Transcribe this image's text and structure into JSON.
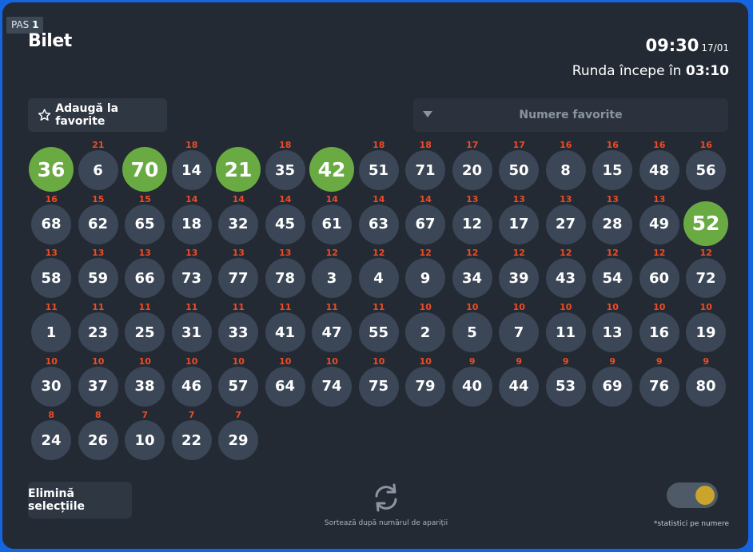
{
  "step": {
    "prefix": "PAS",
    "number": "1"
  },
  "title": "Bilet",
  "clock": {
    "time": "09:30",
    "date": "17/01"
  },
  "countdown": {
    "label": "Runda începe în",
    "value": "03:10"
  },
  "favorites_button": {
    "label": "Adaugă la favorite"
  },
  "favorites_select": {
    "placeholder": "Numere favorite"
  },
  "numbers": [
    {
      "n": "36",
      "count": "",
      "selected": true
    },
    {
      "n": "6",
      "count": "21",
      "selected": false
    },
    {
      "n": "70",
      "count": "",
      "selected": true
    },
    {
      "n": "14",
      "count": "18",
      "selected": false
    },
    {
      "n": "21",
      "count": "",
      "selected": true
    },
    {
      "n": "35",
      "count": "18",
      "selected": false
    },
    {
      "n": "42",
      "count": "",
      "selected": true
    },
    {
      "n": "51",
      "count": "18",
      "selected": false
    },
    {
      "n": "71",
      "count": "18",
      "selected": false
    },
    {
      "n": "20",
      "count": "17",
      "selected": false
    },
    {
      "n": "50",
      "count": "17",
      "selected": false
    },
    {
      "n": "8",
      "count": "16",
      "selected": false
    },
    {
      "n": "15",
      "count": "16",
      "selected": false
    },
    {
      "n": "48",
      "count": "16",
      "selected": false
    },
    {
      "n": "56",
      "count": "16",
      "selected": false
    },
    {
      "n": "68",
      "count": "16",
      "selected": false
    },
    {
      "n": "62",
      "count": "15",
      "selected": false
    },
    {
      "n": "65",
      "count": "15",
      "selected": false
    },
    {
      "n": "18",
      "count": "14",
      "selected": false
    },
    {
      "n": "32",
      "count": "14",
      "selected": false
    },
    {
      "n": "45",
      "count": "14",
      "selected": false
    },
    {
      "n": "61",
      "count": "14",
      "selected": false
    },
    {
      "n": "63",
      "count": "14",
      "selected": false
    },
    {
      "n": "67",
      "count": "14",
      "selected": false
    },
    {
      "n": "12",
      "count": "13",
      "selected": false
    },
    {
      "n": "17",
      "count": "13",
      "selected": false
    },
    {
      "n": "27",
      "count": "13",
      "selected": false
    },
    {
      "n": "28",
      "count": "13",
      "selected": false
    },
    {
      "n": "49",
      "count": "13",
      "selected": false
    },
    {
      "n": "52",
      "count": "",
      "selected": true
    },
    {
      "n": "58",
      "count": "13",
      "selected": false
    },
    {
      "n": "59",
      "count": "13",
      "selected": false
    },
    {
      "n": "66",
      "count": "13",
      "selected": false
    },
    {
      "n": "73",
      "count": "13",
      "selected": false
    },
    {
      "n": "77",
      "count": "13",
      "selected": false
    },
    {
      "n": "78",
      "count": "13",
      "selected": false
    },
    {
      "n": "3",
      "count": "12",
      "selected": false
    },
    {
      "n": "4",
      "count": "12",
      "selected": false
    },
    {
      "n": "9",
      "count": "12",
      "selected": false
    },
    {
      "n": "34",
      "count": "12",
      "selected": false
    },
    {
      "n": "39",
      "count": "12",
      "selected": false
    },
    {
      "n": "43",
      "count": "12",
      "selected": false
    },
    {
      "n": "54",
      "count": "12",
      "selected": false
    },
    {
      "n": "60",
      "count": "12",
      "selected": false
    },
    {
      "n": "72",
      "count": "12",
      "selected": false
    },
    {
      "n": "1",
      "count": "11",
      "selected": false
    },
    {
      "n": "23",
      "count": "11",
      "selected": false
    },
    {
      "n": "25",
      "count": "11",
      "selected": false
    },
    {
      "n": "31",
      "count": "11",
      "selected": false
    },
    {
      "n": "33",
      "count": "11",
      "selected": false
    },
    {
      "n": "41",
      "count": "11",
      "selected": false
    },
    {
      "n": "47",
      "count": "11",
      "selected": false
    },
    {
      "n": "55",
      "count": "11",
      "selected": false
    },
    {
      "n": "2",
      "count": "10",
      "selected": false
    },
    {
      "n": "5",
      "count": "10",
      "selected": false
    },
    {
      "n": "7",
      "count": "10",
      "selected": false
    },
    {
      "n": "11",
      "count": "10",
      "selected": false
    },
    {
      "n": "13",
      "count": "10",
      "selected": false
    },
    {
      "n": "16",
      "count": "10",
      "selected": false
    },
    {
      "n": "19",
      "count": "10",
      "selected": false
    },
    {
      "n": "30",
      "count": "10",
      "selected": false
    },
    {
      "n": "37",
      "count": "10",
      "selected": false
    },
    {
      "n": "38",
      "count": "10",
      "selected": false
    },
    {
      "n": "46",
      "count": "10",
      "selected": false
    },
    {
      "n": "57",
      "count": "10",
      "selected": false
    },
    {
      "n": "64",
      "count": "10",
      "selected": false
    },
    {
      "n": "74",
      "count": "10",
      "selected": false
    },
    {
      "n": "75",
      "count": "10",
      "selected": false
    },
    {
      "n": "79",
      "count": "10",
      "selected": false
    },
    {
      "n": "40",
      "count": "9",
      "selected": false
    },
    {
      "n": "44",
      "count": "9",
      "selected": false
    },
    {
      "n": "53",
      "count": "9",
      "selected": false
    },
    {
      "n": "69",
      "count": "9",
      "selected": false
    },
    {
      "n": "76",
      "count": "9",
      "selected": false
    },
    {
      "n": "80",
      "count": "9",
      "selected": false
    },
    {
      "n": "24",
      "count": "8",
      "selected": false
    },
    {
      "n": "26",
      "count": "8",
      "selected": false
    },
    {
      "n": "10",
      "count": "7",
      "selected": false
    },
    {
      "n": "22",
      "count": "7",
      "selected": false
    },
    {
      "n": "29",
      "count": "7",
      "selected": false
    }
  ],
  "clear_button": {
    "label": "Elimină selecțiile"
  },
  "sort": {
    "label": "Sortează după numărul de apariții",
    "icon": "refresh-icon"
  },
  "stats_toggle": {
    "on": true,
    "note": "*statistici pe numere"
  },
  "colors": {
    "selected": "#6aaa43",
    "count": "#ef4b24",
    "ball": "#3b4656",
    "toggle_knob": "#caa42c"
  }
}
